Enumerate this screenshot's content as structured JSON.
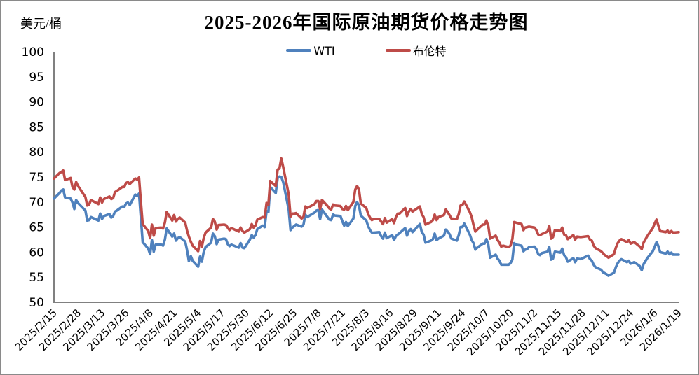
{
  "header": {
    "unit_label": "美元/桶",
    "title": "2025-2026年国际原油期货价格走势图"
  },
  "legend": [
    {
      "label": "WTI",
      "color": "#4F81BD"
    },
    {
      "label": "布伦特",
      "color": "#BE4B48"
    }
  ],
  "chart_data": {
    "type": "line",
    "title": "2025-2026年国际原油期货价格走势图",
    "ylabel": "美元/桶",
    "ylim": [
      50,
      100
    ],
    "ytick_step": 5,
    "grid": false,
    "legend_position": "top-center",
    "x_tick_interval_days": 13,
    "x_total_days": 338,
    "x_tick_labels": [
      "2025/2/15",
      "2025/2/28",
      "2025/3/13",
      "2025/3/26",
      "2025/4/8",
      "2025/4/21",
      "2025/5/4",
      "2025/5/17",
      "2025/5/30",
      "2025/6/12",
      "2025/6/25",
      "2025/7/8",
      "2025/7/21",
      "2025/8/3",
      "2025/8/16",
      "2025/8/29",
      "2025/9/11",
      "2025/9/24",
      "2025/10/7",
      "2025/10/20",
      "2025/11/2",
      "2025/11/15",
      "2025/11/28",
      "2025/12/11",
      "2025/12/24",
      "2026/1/6",
      "2026/1/19"
    ],
    "series": [
      {
        "name": "WTI",
        "color": "#4F81BD"
      },
      {
        "name": "布伦特",
        "color": "#BE4B48"
      }
    ],
    "points": [
      [
        0,
        70.7,
        74.7
      ],
      [
        3,
        71.8,
        75.8
      ],
      [
        4,
        72.3,
        76.0
      ],
      [
        5,
        72.5,
        76.3
      ],
      [
        6,
        70.9,
        74.4
      ],
      [
        9,
        70.7,
        74.8
      ],
      [
        10,
        69.9,
        73.0
      ],
      [
        11,
        68.6,
        72.5
      ],
      [
        12,
        70.4,
        74.0
      ],
      [
        13,
        69.8,
        73.2
      ],
      [
        17,
        68.3,
        71.0
      ],
      [
        18,
        66.3,
        69.3
      ],
      [
        19,
        66.4,
        69.5
      ],
      [
        20,
        67.0,
        70.4
      ],
      [
        24,
        66.3,
        69.6
      ],
      [
        25,
        67.7,
        70.9
      ],
      [
        26,
        66.6,
        69.9
      ],
      [
        27,
        67.2,
        70.6
      ],
      [
        30,
        67.6,
        71.1
      ],
      [
        31,
        66.9,
        70.6
      ],
      [
        32,
        67.2,
        70.8
      ],
      [
        33,
        68.1,
        72.0
      ],
      [
        34,
        68.3,
        72.2
      ],
      [
        37,
        69.1,
        73.0
      ],
      [
        38,
        69.0,
        73.0
      ],
      [
        39,
        69.7,
        73.8
      ],
      [
        40,
        69.9,
        74.0
      ],
      [
        41,
        69.4,
        73.6
      ],
      [
        44,
        71.5,
        74.7
      ],
      [
        45,
        71.2,
        74.5
      ],
      [
        46,
        71.7,
        74.9
      ],
      [
        47,
        66.9,
        70.1
      ],
      [
        48,
        62.0,
        65.6
      ],
      [
        51,
        60.7,
        64.2
      ],
      [
        52,
        59.6,
        62.8
      ],
      [
        53,
        62.4,
        65.5
      ],
      [
        54,
        60.1,
        63.3
      ],
      [
        55,
        61.5,
        64.8
      ],
      [
        58,
        61.5,
        64.9
      ],
      [
        59,
        61.3,
        64.7
      ],
      [
        60,
        62.5,
        65.9
      ],
      [
        61,
        64.7,
        68.0
      ],
      [
        64,
        63.1,
        66.3
      ],
      [
        65,
        63.7,
        67.4
      ],
      [
        66,
        62.3,
        66.1
      ],
      [
        67,
        62.8,
        66.6
      ],
      [
        68,
        63.0,
        66.9
      ],
      [
        71,
        62.1,
        65.9
      ],
      [
        72,
        60.4,
        64.3
      ],
      [
        73,
        58.2,
        63.1
      ],
      [
        74,
        59.2,
        62.1
      ],
      [
        75,
        58.3,
        61.3
      ],
      [
        78,
        57.1,
        60.2
      ],
      [
        79,
        59.1,
        62.2
      ],
      [
        80,
        58.1,
        61.1
      ],
      [
        81,
        60.0,
        62.8
      ],
      [
        82,
        61.0,
        63.9
      ],
      [
        85,
        61.9,
        64.9
      ],
      [
        86,
        63.7,
        66.6
      ],
      [
        87,
        63.2,
        66.1
      ],
      [
        88,
        61.6,
        64.5
      ],
      [
        89,
        62.5,
        65.4
      ],
      [
        92,
        62.7,
        65.5
      ],
      [
        93,
        62.6,
        65.4
      ],
      [
        94,
        61.6,
        64.9
      ],
      [
        95,
        61.2,
        64.4
      ],
      [
        96,
        61.5,
        64.8
      ],
      [
        100,
        60.9,
        64.1
      ],
      [
        101,
        61.8,
        64.9
      ],
      [
        102,
        60.9,
        64.2
      ],
      [
        103,
        60.8,
        63.9
      ],
      [
        106,
        62.5,
        64.6
      ],
      [
        107,
        63.4,
        65.6
      ],
      [
        108,
        62.9,
        64.9
      ],
      [
        109,
        63.4,
        65.3
      ],
      [
        110,
        64.6,
        66.5
      ],
      [
        113,
        65.3,
        67.0
      ],
      [
        114,
        65.0,
        66.9
      ],
      [
        115,
        68.2,
        69.8
      ],
      [
        116,
        68.0,
        69.4
      ],
      [
        117,
        73.0,
        74.2
      ],
      [
        120,
        71.8,
        73.2
      ],
      [
        121,
        74.8,
        76.5
      ],
      [
        122,
        75.1,
        76.7
      ],
      [
        123,
        75.0,
        78.7
      ],
      [
        124,
        74.0,
        77.0
      ],
      [
        127,
        68.5,
        71.5
      ],
      [
        128,
        64.4,
        67.1
      ],
      [
        129,
        64.9,
        67.7
      ],
      [
        130,
        65.2,
        67.7
      ],
      [
        131,
        65.5,
        67.8
      ],
      [
        134,
        65.1,
        66.7
      ],
      [
        135,
        65.5,
        67.1
      ],
      [
        136,
        67.5,
        69.1
      ],
      [
        137,
        67.0,
        68.8
      ],
      [
        141,
        67.9,
        69.6
      ],
      [
        142,
        68.3,
        70.2
      ],
      [
        143,
        68.4,
        70.2
      ],
      [
        144,
        66.6,
        68.6
      ],
      [
        145,
        68.5,
        70.4
      ],
      [
        148,
        67.0,
        69.2
      ],
      [
        149,
        66.5,
        68.7
      ],
      [
        150,
        66.4,
        68.5
      ],
      [
        151,
        67.5,
        69.5
      ],
      [
        152,
        67.3,
        69.3
      ],
      [
        155,
        67.2,
        69.2
      ],
      [
        156,
        66.2,
        68.6
      ],
      [
        157,
        65.3,
        68.5
      ],
      [
        158,
        66.0,
        69.2
      ],
      [
        159,
        65.2,
        68.4
      ],
      [
        162,
        66.7,
        70.0
      ],
      [
        163,
        69.2,
        72.5
      ],
      [
        164,
        70.0,
        73.2
      ],
      [
        165,
        69.3,
        72.5
      ],
      [
        166,
        67.3,
        69.7
      ],
      [
        169,
        66.3,
        68.8
      ],
      [
        170,
        65.2,
        67.6
      ],
      [
        171,
        64.4,
        66.9
      ],
      [
        172,
        63.9,
        66.4
      ],
      [
        173,
        63.9,
        66.6
      ],
      [
        176,
        64.0,
        66.6
      ],
      [
        177,
        63.2,
        66.1
      ],
      [
        178,
        62.7,
        65.6
      ],
      [
        179,
        63.9,
        66.8
      ],
      [
        180,
        62.8,
        65.9
      ],
      [
        183,
        63.4,
        66.6
      ],
      [
        184,
        62.4,
        65.8
      ],
      [
        185,
        63.2,
        67.0
      ],
      [
        186,
        63.5,
        67.7
      ],
      [
        187,
        63.8,
        67.7
      ],
      [
        190,
        64.8,
        68.8
      ],
      [
        191,
        63.3,
        67.2
      ],
      [
        192,
        64.2,
        68.1
      ],
      [
        193,
        64.6,
        68.6
      ],
      [
        194,
        64.0,
        68.1
      ],
      [
        198,
        65.6,
        69.1
      ],
      [
        199,
        64.0,
        67.6
      ],
      [
        200,
        63.5,
        67.0
      ],
      [
        201,
        61.9,
        65.5
      ],
      [
        204,
        62.3,
        66.0
      ],
      [
        205,
        62.6,
        66.4
      ],
      [
        206,
        63.7,
        67.5
      ],
      [
        207,
        62.4,
        66.4
      ],
      [
        208,
        62.7,
        67.0
      ],
      [
        211,
        63.3,
        67.4
      ],
      [
        212,
        64.5,
        68.5
      ],
      [
        213,
        64.1,
        68.0
      ],
      [
        214,
        63.6,
        67.4
      ],
      [
        215,
        62.7,
        66.7
      ],
      [
        218,
        62.3,
        66.6
      ],
      [
        219,
        63.4,
        67.6
      ],
      [
        220,
        65.0,
        69.3
      ],
      [
        221,
        65.0,
        69.4
      ],
      [
        222,
        65.7,
        70.1
      ],
      [
        225,
        63.5,
        68.0
      ],
      [
        226,
        62.4,
        67.0
      ],
      [
        227,
        61.8,
        65.4
      ],
      [
        228,
        60.5,
        64.1
      ],
      [
        229,
        60.9,
        64.5
      ],
      [
        232,
        61.7,
        65.5
      ],
      [
        233,
        61.7,
        65.5
      ],
      [
        234,
        62.6,
        66.3
      ],
      [
        235,
        61.5,
        65.2
      ],
      [
        236,
        58.9,
        62.7
      ],
      [
        239,
        59.5,
        63.3
      ],
      [
        240,
        58.7,
        62.4
      ],
      [
        241,
        58.3,
        61.9
      ],
      [
        242,
        57.5,
        61.1
      ],
      [
        243,
        57.5,
        61.3
      ],
      [
        246,
        57.5,
        61.0
      ],
      [
        247,
        57.8,
        61.3
      ],
      [
        248,
        58.5,
        62.6
      ],
      [
        249,
        61.8,
        66.0
      ],
      [
        250,
        61.5,
        65.9
      ],
      [
        253,
        61.3,
        65.6
      ],
      [
        254,
        60.2,
        64.4
      ],
      [
        255,
        60.5,
        64.9
      ],
      [
        256,
        60.6,
        65.0
      ],
      [
        257,
        61.0,
        65.1
      ],
      [
        260,
        61.1,
        64.9
      ],
      [
        261,
        60.6,
        64.4
      ],
      [
        262,
        59.6,
        63.5
      ],
      [
        263,
        59.4,
        63.4
      ],
      [
        264,
        59.8,
        63.6
      ],
      [
        267,
        60.1,
        64.1
      ],
      [
        268,
        61.0,
        65.2
      ],
      [
        269,
        58.5,
        62.7
      ],
      [
        270,
        58.7,
        63.0
      ],
      [
        271,
        60.1,
        64.4
      ],
      [
        274,
        59.9,
        64.2
      ],
      [
        275,
        60.7,
        64.9
      ],
      [
        276,
        59.4,
        63.5
      ],
      [
        277,
        59.0,
        63.4
      ],
      [
        278,
        58.1,
        62.6
      ],
      [
        281,
        58.8,
        63.4
      ],
      [
        282,
        58.0,
        62.5
      ],
      [
        283,
        58.7,
        63.1
      ],
      [
        285,
        58.6,
        63.0
      ],
      [
        289,
        59.3,
        63.2
      ],
      [
        290,
        58.6,
        62.5
      ],
      [
        291,
        58.3,
        62.3
      ],
      [
        292,
        57.5,
        61.3
      ],
      [
        293,
        57.0,
        60.8
      ],
      [
        296,
        56.5,
        60.2
      ],
      [
        297,
        56.0,
        59.8
      ],
      [
        298,
        55.8,
        59.4
      ],
      [
        299,
        55.6,
        59.2
      ],
      [
        300,
        55.3,
        58.9
      ],
      [
        303,
        55.9,
        59.6
      ],
      [
        304,
        57.0,
        60.9
      ],
      [
        305,
        57.8,
        61.8
      ],
      [
        306,
        58.3,
        62.3
      ],
      [
        307,
        58.6,
        62.6
      ],
      [
        310,
        58.0,
        62.0
      ],
      [
        311,
        58.3,
        62.4
      ],
      [
        312,
        57.7,
        61.7
      ],
      [
        314,
        58.0,
        62.0
      ],
      [
        317,
        57.2,
        61.1
      ],
      [
        318,
        56.4,
        60.6
      ],
      [
        319,
        57.6,
        61.9
      ],
      [
        321,
        58.8,
        63.2
      ],
      [
        324,
        60.2,
        64.8
      ],
      [
        325,
        61.0,
        65.7
      ],
      [
        326,
        62.0,
        66.5
      ],
      [
        327,
        61.2,
        65.3
      ],
      [
        328,
        60.0,
        64.2
      ],
      [
        331,
        59.7,
        64.0
      ],
      [
        332,
        60.1,
        64.3
      ],
      [
        333,
        59.6,
        63.8
      ],
      [
        334,
        59.9,
        64.2
      ],
      [
        335,
        59.5,
        63.9
      ],
      [
        338,
        59.5,
        64.0
      ]
    ]
  }
}
